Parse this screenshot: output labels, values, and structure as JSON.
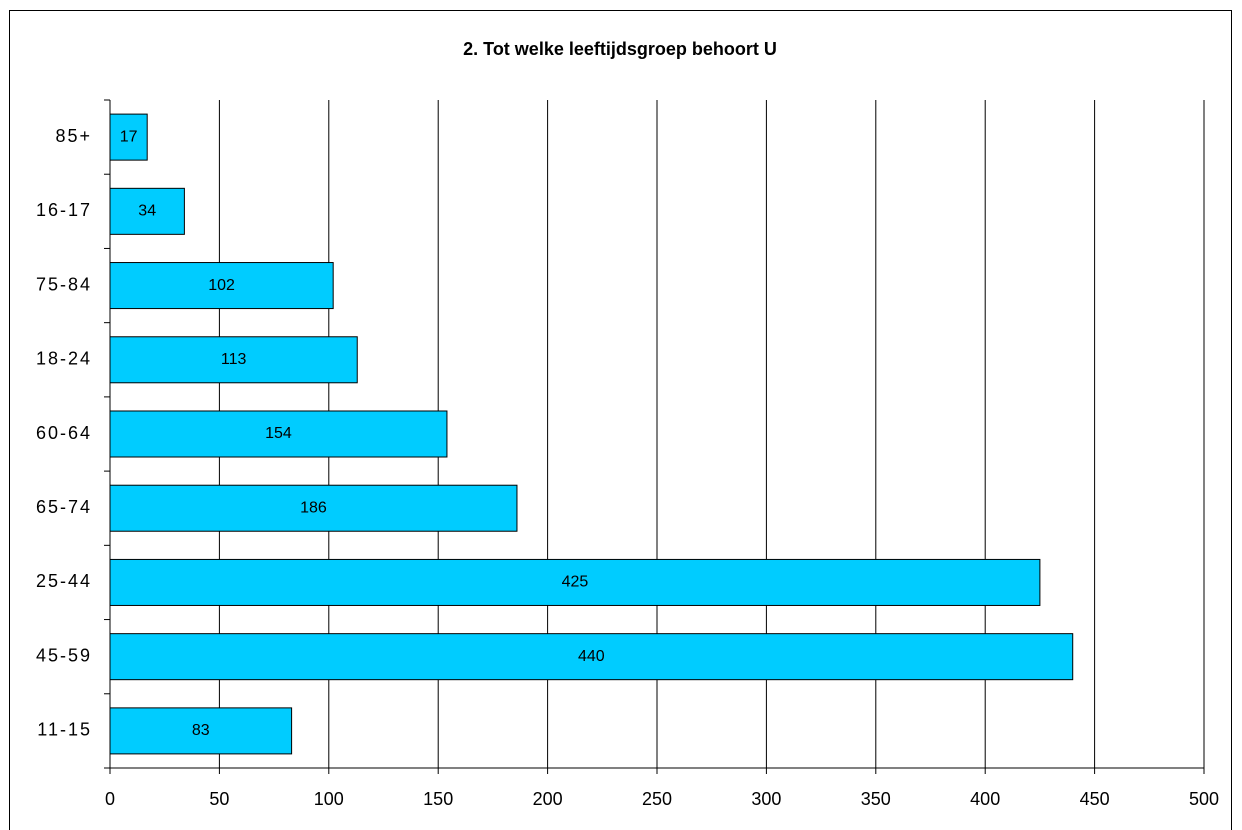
{
  "chart_data": {
    "type": "bar",
    "orientation": "horizontal",
    "title": "2. Tot welke leeftijdsgroep behoort U",
    "categories": [
      "85+",
      "16-17",
      "75-84",
      "18-24",
      "60-64",
      "65-74",
      "25-44",
      "45-59",
      "11-15"
    ],
    "values": [
      17,
      34,
      102,
      113,
      154,
      186,
      425,
      440,
      83
    ],
    "color": "#00ccff",
    "xlim": [
      0,
      500
    ],
    "xticks": [
      0,
      50,
      100,
      150,
      200,
      250,
      300,
      350,
      400,
      450,
      500
    ],
    "grid": true
  }
}
